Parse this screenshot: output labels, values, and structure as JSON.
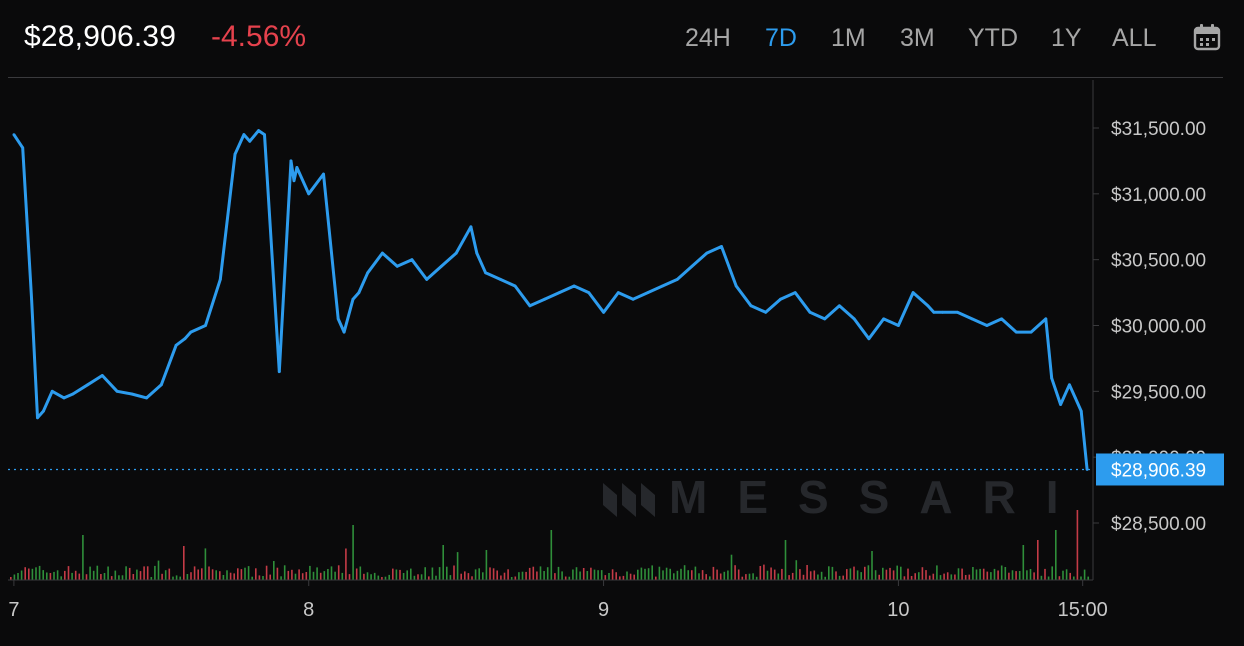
{
  "header": {
    "price": "$28,906.39",
    "change": "-4.56%",
    "ranges": [
      "24H",
      "7D",
      "1M",
      "3M",
      "YTD",
      "1Y",
      "ALL"
    ],
    "active_range": "7D",
    "calendar_icon": "calendar-icon"
  },
  "watermark": {
    "text": "MESSARI",
    "logo_icon": "messari-logo-icon"
  },
  "colors": {
    "background": "#0a0a0b",
    "line": "#2d9cee",
    "negative": "#e5424d",
    "volume_up": "#2f8f3a",
    "volume_down": "#c43b47",
    "grid": "#3a3a3d",
    "axis_text": "#c8c8c8"
  },
  "chart_data": {
    "type": "line",
    "series": [
      {
        "x": [
          7.0,
          7.03,
          7.06,
          7.08,
          7.1,
          7.13,
          7.17,
          7.2,
          7.25,
          7.3,
          7.35,
          7.4,
          7.45,
          7.5,
          7.55,
          7.58,
          7.6,
          7.65,
          7.7,
          7.75,
          7.78,
          7.8,
          7.83,
          7.85,
          7.9,
          7.94,
          7.95,
          7.96,
          8.0,
          8.05,
          8.1,
          8.12,
          8.15,
          8.17,
          8.2,
          8.25,
          8.3,
          8.35,
          8.4,
          8.45,
          8.5,
          8.55,
          8.57,
          8.6,
          8.65,
          8.7,
          8.75,
          8.8,
          8.85,
          8.9,
          8.95,
          9.0,
          9.05,
          9.1,
          9.15,
          9.2,
          9.25,
          9.3,
          9.35,
          9.4,
          9.45,
          9.5,
          9.55,
          9.6,
          9.65,
          9.7,
          9.75,
          9.8,
          9.85,
          9.9,
          9.95,
          10.0,
          10.05,
          10.1,
          10.12,
          10.15,
          10.2,
          10.25,
          10.3,
          10.35,
          10.4,
          10.45,
          10.5,
          10.52,
          10.55,
          10.58,
          10.6,
          10.62,
          10.64
        ],
        "values": [
          31450,
          31350,
          30200,
          29300,
          29350,
          29500,
          29450,
          29480,
          29550,
          29620,
          29500,
          29480,
          29450,
          29550,
          29850,
          29900,
          29950,
          30000,
          30350,
          31300,
          31450,
          31400,
          31480,
          31450,
          29650,
          31250,
          31100,
          31200,
          31000,
          31150,
          30050,
          29950,
          30200,
          30250,
          30400,
          30550,
          30450,
          30500,
          30350,
          30450,
          30550,
          30750,
          30550,
          30400,
          30350,
          30300,
          30150,
          30200,
          30250,
          30300,
          30250,
          30100,
          30250,
          30200,
          30250,
          30300,
          30350,
          30450,
          30550,
          30600,
          30300,
          30150,
          30100,
          30200,
          30250,
          30100,
          30050,
          30150,
          30050,
          29900,
          30050,
          30000,
          30250,
          30150,
          30100,
          30100,
          30100,
          30050,
          30000,
          30050,
          29950,
          29950,
          30050,
          29600,
          29400,
          29550,
          29450,
          29350,
          28906.39
        ]
      }
    ],
    "volume_bars": 300,
    "current_price": 28906.39,
    "current_price_label": "$28,906.39",
    "y_ticks": [
      28500,
      29000,
      29500,
      30000,
      30500,
      31000,
      31500
    ],
    "y_tick_labels": [
      "$28,500.00",
      "$29,000.00",
      "$29,500.00",
      "$30,000.00",
      "$30,500.00",
      "$31,000.00",
      "$31,500.00"
    ],
    "ylim": [
      28500,
      31500
    ],
    "x_ticks": [
      7,
      8,
      9,
      10,
      10.625
    ],
    "x_tick_labels": [
      "7",
      "8",
      "9",
      "10",
      "15:00"
    ],
    "xlim": [
      6.98,
      10.66
    ],
    "grid": false,
    "legend": "none"
  }
}
